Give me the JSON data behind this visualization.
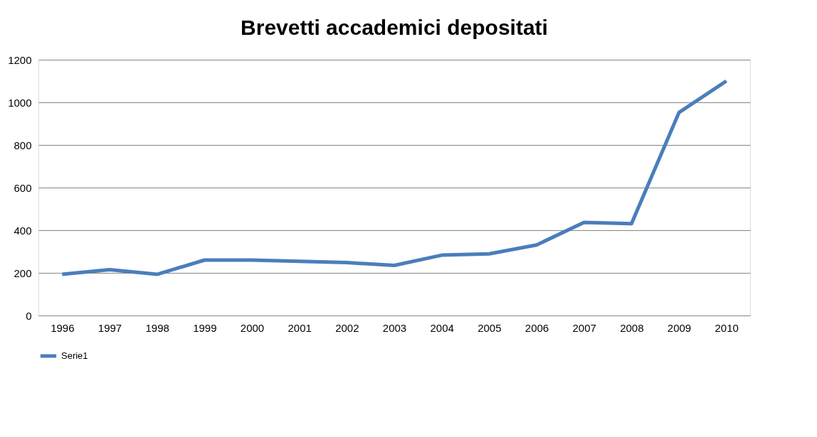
{
  "chart_data": {
    "type": "line",
    "title": "Brevetti accademici depositati",
    "categories": [
      "1996",
      "1997",
      "1998",
      "1999",
      "2000",
      "2001",
      "2002",
      "2003",
      "2004",
      "2005",
      "2006",
      "2007",
      "2008",
      "2009",
      "2010"
    ],
    "series": [
      {
        "name": "Serie1",
        "color": "#4a7ebb",
        "values": [
          193,
          215,
          193,
          260,
          260,
          254,
          248,
          235,
          283,
          289,
          331,
          437,
          431,
          952,
          1100
        ]
      }
    ],
    "ylim": [
      0,
      1200
    ],
    "yticks": [
      0,
      200,
      400,
      600,
      800,
      1000,
      1200
    ],
    "grid": "y",
    "legend": "bottom",
    "marker": "none",
    "line_style": "solid"
  }
}
